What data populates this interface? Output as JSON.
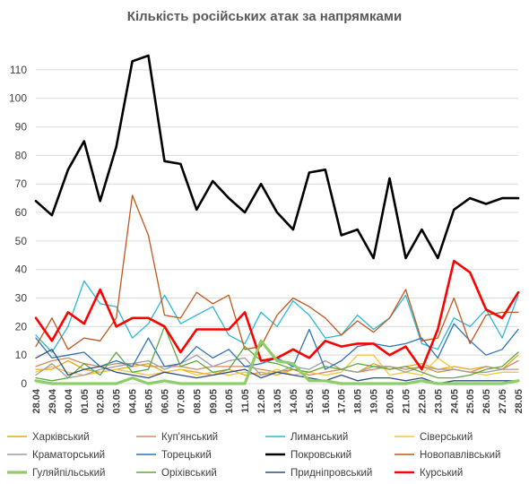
{
  "chart_data": {
    "type": "line",
    "title": "Кількість російських атак за напрямками",
    "ylim": [
      0,
      115
    ],
    "yticks": [
      0,
      10,
      20,
      30,
      40,
      50,
      60,
      70,
      80,
      90,
      100,
      110
    ],
    "grid": "horizontal",
    "legend_position": "bottom",
    "categories": [
      "28.04",
      "29.04",
      "30.04",
      "01.05",
      "02.05",
      "03.05",
      "04.05",
      "05.05",
      "06.05",
      "07.05",
      "08.05",
      "09.05",
      "10.05",
      "11.05",
      "12.05",
      "13.05",
      "14.05",
      "15.05",
      "16.05",
      "17.05",
      "18.05",
      "19.05",
      "20.05",
      "21.05",
      "22.05",
      "23.05",
      "24.05",
      "25.05",
      "26.05",
      "27.05",
      "28.05"
    ],
    "series": [
      {
        "name": "Харківський",
        "color": "#e6a817",
        "width": 1.3,
        "values": [
          5,
          5,
          8,
          5,
          4,
          5,
          6,
          7,
          4,
          5,
          4,
          3,
          5,
          3,
          4,
          3,
          5,
          4,
          6,
          5,
          4,
          7,
          5,
          6,
          7,
          5,
          6,
          5,
          6,
          5,
          10
        ]
      },
      {
        "name": "Куп'янський",
        "color": "#d58a5c",
        "width": 1.3,
        "values": [
          6,
          8,
          9,
          7,
          6,
          7,
          7,
          6,
          6,
          6,
          5,
          6,
          6,
          6,
          5,
          4,
          5,
          3,
          4,
          5,
          4,
          5,
          6,
          5,
          6,
          4,
          5,
          4,
          6,
          5,
          8
        ]
      },
      {
        "name": "Лиманський",
        "color": "#2ab7d6",
        "width": 1.3,
        "values": [
          17,
          11,
          20,
          36,
          28,
          27,
          16,
          21,
          31,
          21,
          24,
          27,
          17,
          14,
          25,
          20,
          29,
          24,
          16,
          17,
          24,
          19,
          23,
          31,
          14,
          12,
          23,
          20,
          26,
          16,
          31
        ]
      },
      {
        "name": "Сіверський",
        "color": "#f5c442",
        "width": 1.3,
        "values": [
          4,
          6,
          4,
          3,
          4,
          5,
          4,
          3,
          4,
          5,
          3,
          4,
          3,
          4,
          3,
          5,
          3,
          4,
          3,
          4,
          10,
          10,
          3,
          4,
          3,
          9,
          5,
          4,
          3,
          4,
          4
        ]
      },
      {
        "name": "Краматорський",
        "color": "#9e9e9e",
        "width": 1.3,
        "values": [
          3,
          7,
          2,
          3,
          5,
          6,
          7,
          8,
          5,
          7,
          10,
          6,
          8,
          9,
          3,
          4,
          6,
          5,
          8,
          5,
          4,
          6,
          6,
          4,
          6,
          5,
          5,
          4,
          4,
          5,
          5
        ]
      },
      {
        "name": "Торецький",
        "color": "#2e73b5",
        "width": 1.3,
        "values": [
          16,
          9,
          10,
          11,
          6,
          8,
          6,
          16,
          6,
          7,
          13,
          9,
          12,
          6,
          7,
          9,
          6,
          19,
          5,
          8,
          13,
          14,
          13,
          14,
          16,
          9,
          21,
          15,
          10,
          12,
          19
        ]
      },
      {
        "name": "Покровський",
        "color": "#000000",
        "width": 2.6,
        "values": [
          64,
          59,
          75,
          85,
          64,
          83,
          113,
          115,
          78,
          77,
          61,
          71,
          65,
          60,
          70,
          60,
          54,
          74,
          75,
          52,
          54,
          44,
          72,
          44,
          54,
          44,
          61,
          65,
          63,
          65,
          65
        ]
      },
      {
        "name": "Новопавлівський",
        "color": "#c0571b",
        "width": 1.3,
        "values": [
          13,
          23,
          12,
          16,
          15,
          23,
          66,
          52,
          24,
          23,
          32,
          28,
          31,
          12,
          13,
          24,
          30,
          27,
          23,
          17,
          22,
          18,
          23,
          33,
          15,
          16,
          30,
          14,
          24,
          25,
          25
        ]
      },
      {
        "name": "Гуляйпільський",
        "color": "#8fcc6b",
        "width": 3.2,
        "values": [
          1,
          0,
          0,
          0,
          0,
          0,
          2,
          0,
          1,
          0,
          0,
          0,
          0,
          0,
          15,
          8,
          7,
          1,
          1,
          0,
          0,
          0,
          0,
          0,
          1,
          0,
          0,
          0,
          0,
          0,
          1
        ]
      },
      {
        "name": "Оріхівський",
        "color": "#5ea83f",
        "width": 1.3,
        "values": [
          2,
          1,
          2,
          7,
          3,
          11,
          4,
          5,
          20,
          6,
          8,
          4,
          5,
          13,
          8,
          7,
          5,
          4,
          6,
          5,
          7,
          6,
          5,
          6,
          4,
          2,
          2,
          3,
          5,
          6,
          11
        ]
      },
      {
        "name": "Придніпровський",
        "color": "#2f4f7f",
        "width": 1.3,
        "values": [
          9,
          12,
          3,
          5,
          6,
          4,
          3,
          2,
          4,
          3,
          2,
          3,
          4,
          5,
          2,
          4,
          3,
          2,
          1,
          3,
          1,
          2,
          2,
          1,
          2,
          0,
          1,
          1,
          1,
          1,
          1
        ]
      },
      {
        "name": "Курський",
        "color": "#ff0000",
        "width": 2.6,
        "values": [
          23,
          15,
          25,
          21,
          33,
          20,
          23,
          23,
          20,
          11,
          19,
          19,
          19,
          25,
          8,
          9,
          12,
          9,
          15,
          13,
          14,
          14,
          10,
          13,
          5,
          19,
          43,
          39,
          26,
          23,
          32
        ]
      }
    ],
    "legend_order": [
      "Харківський",
      "Куп'янський",
      "Лиманський",
      "Сіверський",
      "Краматорський",
      "Торецький",
      "Покровський",
      "Новопавлівський",
      "Гуляйпільський",
      "Оріхівський",
      "Придніпровський",
      "Курський"
    ]
  }
}
